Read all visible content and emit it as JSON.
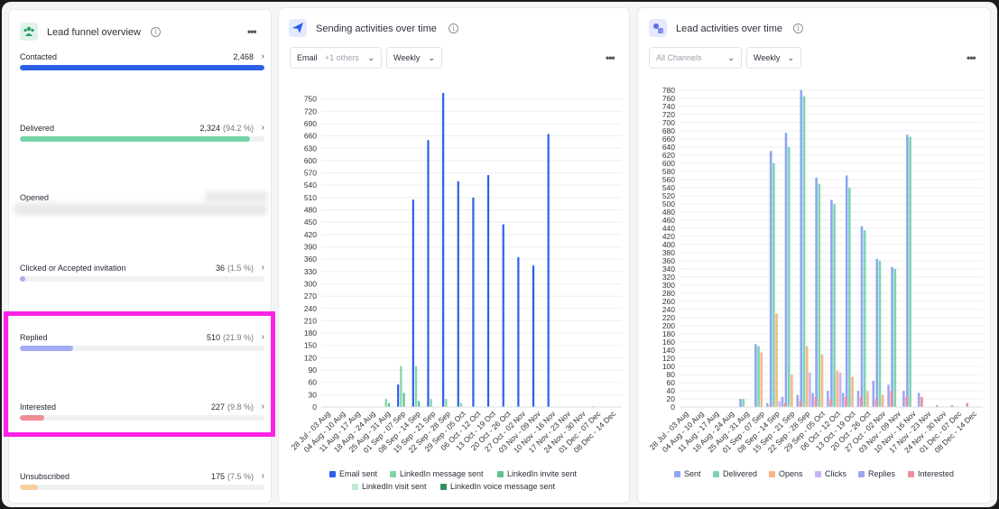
{
  "funnel": {
    "title": "Lead funnel overview",
    "info": "i",
    "rows": [
      {
        "label": "Contacted",
        "value": "2,468",
        "pct": "",
        "fill": 1.0,
        "color": "#2c5fe8"
      },
      {
        "label": "Delivered",
        "value": "2,324",
        "pct": "(94.2 %)",
        "fill": 0.942,
        "color": "#74d3a6"
      },
      {
        "label": "Opened",
        "value": "",
        "pct": "",
        "fill": 0,
        "color": "#e8e9eb"
      },
      {
        "label": "Clicked or Accepted invitation",
        "value": "36",
        "pct": "(1.5 %)",
        "fill": 0.015,
        "color": "#b9a7f4"
      },
      {
        "label": "Replied",
        "value": "510",
        "pct": "(21.9 %)",
        "fill": 0.219,
        "color": "#a3acf5"
      },
      {
        "label": "Interested",
        "value": "227",
        "pct": "(9.8 %)",
        "fill": 0.098,
        "color": "#f08d94"
      },
      {
        "label": "Unsubscribed",
        "value": "175",
        "pct": "(7.5 %)",
        "fill": 0.075,
        "color": "#f7cf9e"
      }
    ]
  },
  "sending": {
    "title": "Sending activities over time",
    "filter_channel": "Email",
    "filter_extra": "+1 others",
    "filter_period": "Weekly"
  },
  "leads": {
    "title": "Lead activities over time",
    "filter_channel": "All Channels",
    "filter_period": "Weekly"
  },
  "icons": {
    "funnel": "people-icon",
    "sending": "paper-plane-icon",
    "leads": "activity-icon",
    "more": "ellipsis-icon",
    "chevron": "chevron-right-icon"
  },
  "chart_data": [
    {
      "type": "bar",
      "title": "Sending activities over time",
      "ylim": [
        0,
        780
      ],
      "yticks": [
        0,
        30,
        60,
        90,
        120,
        150,
        180,
        210,
        240,
        270,
        300,
        330,
        360,
        390,
        420,
        450,
        480,
        510,
        540,
        570,
        600,
        630,
        660,
        690,
        720,
        750
      ],
      "categories": [
        "28 Jul - 03 Aug",
        "04 Aug - 10 Aug",
        "11 Aug - 17 Aug",
        "18 Aug - 24 Aug",
        "25 Aug - 31 Aug",
        "01 Sep - 07 Sep",
        "08 Sep - 14 Sep",
        "15 Sep - 21 Sep",
        "22 Sep - 28 Sep",
        "29 Sep - 05 Oct",
        "06 Oct - 12 Oct",
        "13 Oct - 19 Oct",
        "20 Oct - 26 Oct",
        "27 Oct - 02 Nov",
        "03 Nov - 09 Nov",
        "10 Nov - 16 Nov",
        "17 Nov - 23 Nov",
        "24 Nov - 30 Nov",
        "01 Dec - 07 Dec",
        "08 Dec - 14 Dec"
      ],
      "series": [
        {
          "name": "Email sent",
          "color": "#2c5fe8",
          "values": [
            0,
            0,
            0,
            0,
            0,
            55,
            505,
            650,
            765,
            550,
            510,
            565,
            445,
            365,
            345,
            665,
            0,
            0,
            2,
            0
          ]
        },
        {
          "name": "LinkedIn message sent",
          "color": "#7fd4a8",
          "values": [
            0,
            0,
            0,
            0,
            20,
            100,
            100,
            20,
            20,
            10,
            0,
            0,
            0,
            0,
            0,
            0,
            0,
            0,
            0,
            0
          ]
        },
        {
          "name": "LinkedIn invite sent",
          "color": "#5cc38f",
          "values": [
            0,
            0,
            0,
            0,
            10,
            35,
            15,
            0,
            0,
            0,
            0,
            0,
            0,
            0,
            0,
            0,
            0,
            0,
            0,
            0
          ]
        },
        {
          "name": "LinkedIn visit sent",
          "color": "#bfe8d2",
          "values": [
            0,
            0,
            0,
            0,
            0,
            0,
            0,
            0,
            0,
            0,
            0,
            0,
            0,
            0,
            0,
            0,
            0,
            0,
            0,
            0
          ]
        },
        {
          "name": "LinkedIn voice message sent",
          "color": "#2f8f5e",
          "values": [
            0,
            0,
            0,
            0,
            0,
            0,
            0,
            0,
            0,
            0,
            0,
            0,
            0,
            0,
            0,
            0,
            0,
            0,
            0,
            0
          ]
        }
      ]
    },
    {
      "type": "bar",
      "title": "Lead activities over time",
      "ylim": [
        0,
        795
      ],
      "yticks": [
        0,
        20,
        40,
        60,
        80,
        100,
        120,
        140,
        160,
        180,
        200,
        220,
        240,
        260,
        280,
        300,
        320,
        340,
        360,
        380,
        400,
        420,
        440,
        460,
        480,
        500,
        520,
        540,
        560,
        580,
        600,
        620,
        640,
        660,
        680,
        700,
        720,
        740,
        760,
        780
      ],
      "tick_labels_shown": [
        0,
        20,
        40,
        60,
        80,
        100,
        120,
        140,
        160,
        180,
        200,
        220,
        240,
        260,
        280,
        300,
        320,
        340,
        360,
        380,
        400,
        420,
        440,
        460,
        480,
        500,
        520,
        540,
        560,
        580,
        600,
        620,
        640,
        660,
        680,
        700,
        720,
        740,
        760,
        780
      ],
      "categories": [
        "28 Jul - 03 Aug",
        "04 Aug - 10 Aug",
        "11 Aug - 17 Aug",
        "18 Aug - 24 Aug",
        "25 Aug - 31 Aug",
        "01 Sep - 07 Sep",
        "08 Sep - 14 Sep",
        "15 Sep - 21 Sep",
        "22 Sep - 28 Sep",
        "29 Sep - 05 Oct",
        "06 Oct - 12 Oct",
        "13 Oct - 19 Oct",
        "20 Oct - 26 Oct",
        "27 Oct - 02 Nov",
        "03 Nov - 09 Nov",
        "10 Nov - 16 Nov",
        "17 Nov - 23 Nov",
        "24 Nov - 30 Nov",
        "01 Dec - 07 Dec",
        "08 Dec - 14 Dec"
      ],
      "series": [
        {
          "name": "Sent",
          "color": "#8aa8f2",
          "values": [
            0,
            0,
            0,
            0,
            20,
            155,
            630,
            675,
            780,
            565,
            510,
            570,
            445,
            365,
            345,
            670,
            0,
            0,
            2,
            0
          ]
        },
        {
          "name": "Delivered",
          "color": "#7fd4b0",
          "values": [
            0,
            0,
            0,
            0,
            20,
            150,
            600,
            640,
            765,
            550,
            500,
            540,
            435,
            360,
            340,
            665,
            0,
            0,
            0,
            0
          ]
        },
        {
          "name": "Opens",
          "color": "#f6b68a",
          "values": [
            0,
            0,
            0,
            0,
            0,
            135,
            230,
            80,
            150,
            130,
            90,
            75,
            40,
            30,
            0,
            0,
            0,
            0,
            0,
            0
          ]
        },
        {
          "name": "Clicks",
          "color": "#c9b3f2",
          "values": [
            0,
            0,
            0,
            0,
            0,
            0,
            15,
            0,
            85,
            0,
            85,
            0,
            0,
            0,
            0,
            0,
            0,
            0,
            0,
            0
          ]
        },
        {
          "name": "Replies",
          "color": "#9ea6f1",
          "values": [
            0,
            0,
            0,
            0,
            0,
            10,
            25,
            30,
            35,
            40,
            35,
            40,
            65,
            55,
            40,
            35,
            0,
            0,
            0,
            0
          ]
        },
        {
          "name": "Interested",
          "color": "#ef8f9c",
          "values": [
            0,
            0,
            0,
            0,
            0,
            5,
            10,
            15,
            25,
            20,
            25,
            25,
            20,
            40,
            25,
            25,
            5,
            5,
            10,
            0
          ]
        }
      ]
    }
  ]
}
